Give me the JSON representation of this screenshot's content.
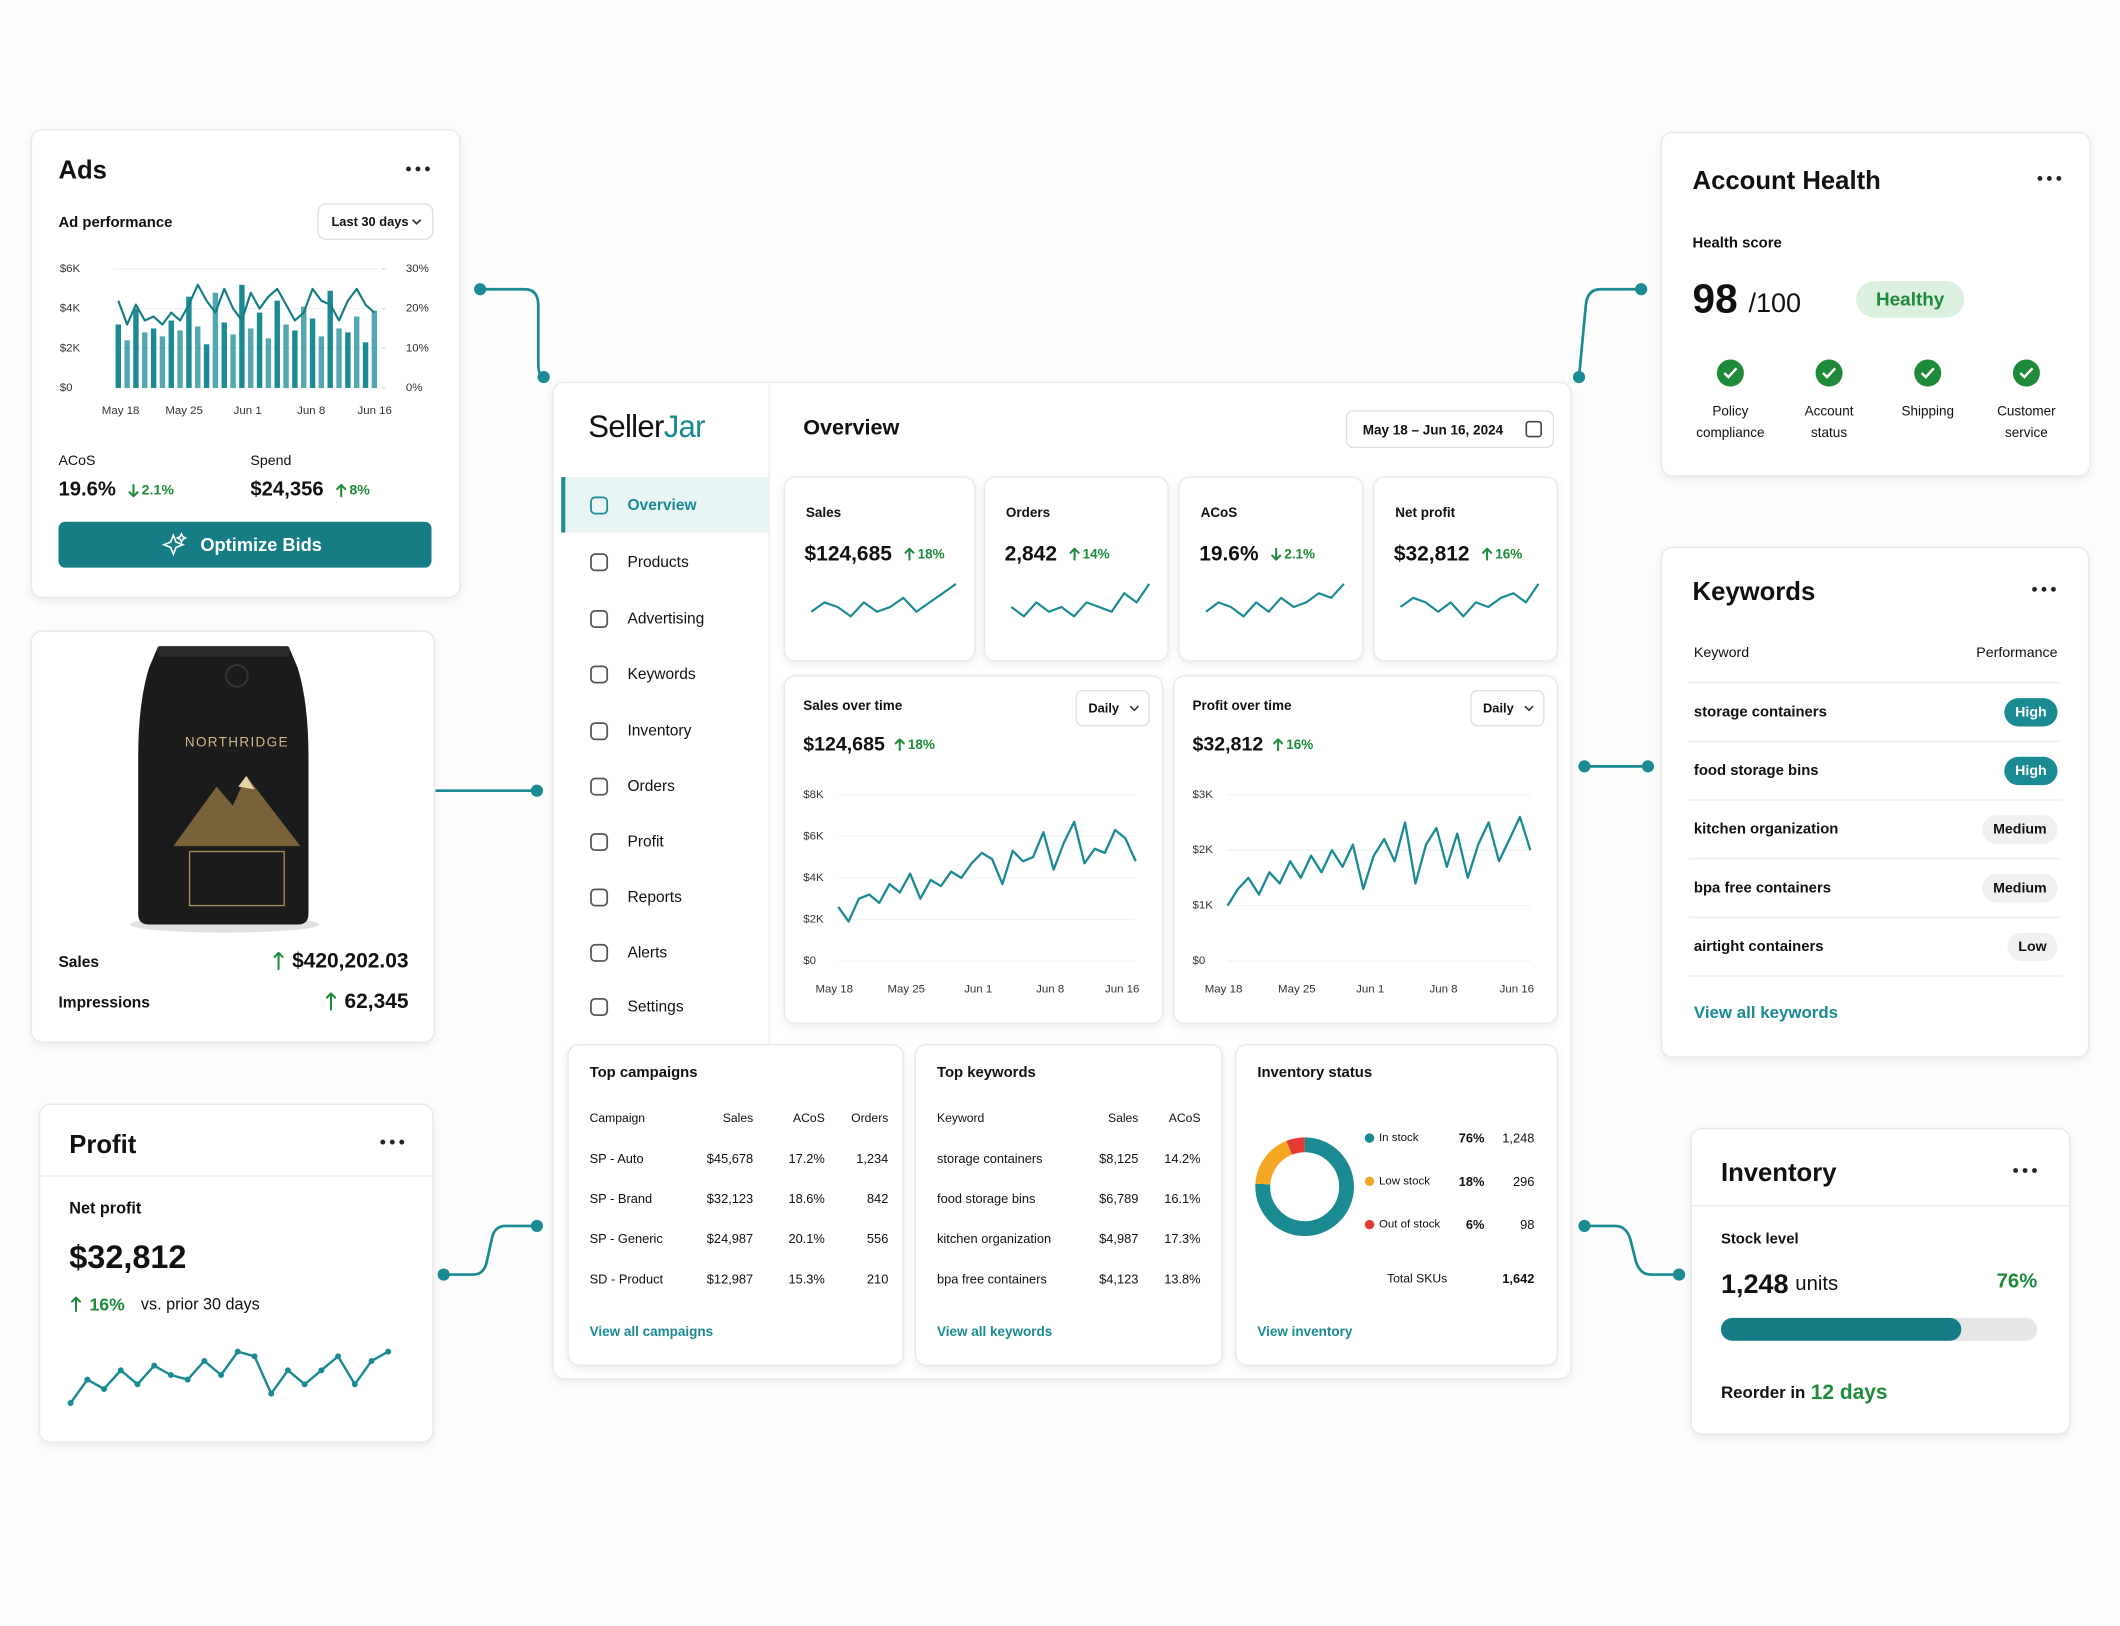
{
  "ads": {
    "title": "Ads",
    "subtitle": "Ad performance",
    "range": "Last 30 days",
    "chart": {
      "type": "bar",
      "x_labels": [
        "May 18",
        "May 25",
        "Jun 1",
        "Jun 8",
        "Jun 16"
      ],
      "series": [
        {
          "color": "#1a8a93",
          "values": [
            3200,
            2400,
            4000,
            2800,
            3000,
            2600,
            3400,
            2900,
            4600,
            3100,
            2200,
            4800,
            3300,
            2700,
            5200,
            3000,
            3800,
            2500,
            4400,
            3200,
            2900,
            4100,
            3500,
            2600,
            4900,
            3000,
            2800,
            3600,
            2300,
            3900
          ]
        },
        {
          "color": "#167d86",
          "axis": "y2",
          "type": "line",
          "values": [
            22,
            16,
            21,
            17,
            18,
            16,
            19,
            17,
            21,
            26,
            22,
            19,
            25,
            20,
            17,
            24,
            20,
            23,
            25,
            21,
            17,
            19,
            25,
            22,
            21,
            17,
            22,
            25,
            21,
            19
          ]
        }
      ],
      "ylim": [
        0,
        6000
      ],
      "yticks": [
        {
          "value": 0,
          "label": "$0"
        },
        {
          "value": 2000,
          "label": "$2K"
        },
        {
          "value": 4000,
          "label": "$4K"
        },
        {
          "value": 6000,
          "label": "$6K"
        }
      ],
      "y2lim": [
        0,
        30
      ],
      "y2ticks": [
        {
          "value": 0,
          "label": "0%"
        },
        {
          "value": 10,
          "label": "10%"
        },
        {
          "value": 20,
          "label": "20%"
        },
        {
          "value": 30,
          "label": "30%"
        }
      ]
    },
    "metrics": [
      {
        "label": "ACoS",
        "value": "19.6%",
        "delta": "2.1%",
        "trend": "down"
      },
      {
        "label": "Spend",
        "value": "$24,356",
        "delta": "8%",
        "trend": "up"
      }
    ],
    "button": "Optimize Bids"
  },
  "product": {
    "brand": "NORTHRIDGE",
    "stats": [
      {
        "label": "Sales",
        "value": "$420,202.03",
        "trend": "up"
      },
      {
        "label": "Impressions",
        "value": "62,345",
        "trend": "up"
      }
    ]
  },
  "profit": {
    "title": "Profit",
    "label": "Net profit",
    "value": "$32,812",
    "delta": "16%",
    "trend": "up",
    "note": "vs. prior 30 days",
    "sparkline": [
      3,
      8,
      6,
      10,
      7,
      11,
      9,
      8,
      12,
      9,
      14,
      13,
      5,
      10,
      7,
      10,
      13,
      7,
      12,
      14
    ]
  },
  "dashboard": {
    "logo": [
      "Seller",
      "Jar"
    ],
    "nav": [
      "Overview",
      "Products",
      "Advertising",
      "Keywords",
      "Inventory",
      "Orders",
      "Profit",
      "Reports",
      "Alerts",
      "Settings"
    ],
    "title": "Overview",
    "date_range": "May 18 – Jun 16, 2024",
    "kpis": [
      {
        "label": "Sales",
        "value": "$124,685",
        "delta": "18%",
        "trend": "up",
        "sparkline": [
          4,
          6,
          5,
          3,
          6,
          4,
          5,
          7,
          4,
          6,
          8,
          10
        ]
      },
      {
        "label": "Orders",
        "value": "2,842",
        "delta": "14%",
        "trend": "up",
        "sparkline": [
          5,
          3,
          6,
          4,
          5,
          3,
          6,
          5,
          4,
          8,
          6,
          10
        ]
      },
      {
        "label": "ACoS",
        "value": "19.6%",
        "delta": "2.1%",
        "trend": "down",
        "sparkline": [
          4,
          6,
          5,
          3,
          6,
          4,
          7,
          5,
          6,
          8,
          7,
          10
        ]
      },
      {
        "label": "Net profit",
        "value": "$32,812",
        "delta": "16%",
        "trend": "up",
        "sparkline": [
          5,
          7,
          6,
          4,
          6,
          3,
          6,
          5,
          7,
          8,
          6,
          10
        ]
      }
    ],
    "charts": [
      {
        "title": "Sales over time",
        "period": "Daily",
        "value": "$124,685",
        "delta": "18%",
        "trend": "up",
        "x_labels": [
          "May 18",
          "May 25",
          "Jun 1",
          "Jun 8",
          "Jun 16"
        ],
        "ylim": [
          0,
          8000
        ],
        "yticks": [
          {
            "value": 0,
            "label": "$0"
          },
          {
            "value": 2000,
            "label": "$2K"
          },
          {
            "value": 4000,
            "label": "$4K"
          },
          {
            "value": 6000,
            "label": "$6K"
          },
          {
            "value": 8000,
            "label": "$8K"
          }
        ],
        "color": "#1a8a93",
        "values": [
          2600,
          1900,
          3000,
          3200,
          2800,
          3700,
          3300,
          4200,
          3000,
          3900,
          3600,
          4300,
          4000,
          4700,
          5200,
          4900,
          3700,
          5300,
          4800,
          5000,
          6200,
          4400,
          5700,
          6700,
          4700,
          5400,
          5200,
          6300,
          5900,
          4800
        ]
      },
      {
        "title": "Profit over time",
        "period": "Daily",
        "value": "$32,812",
        "delta": "16%",
        "trend": "up",
        "x_labels": [
          "May 18",
          "May 25",
          "Jun 1",
          "Jun 8",
          "Jun 16"
        ],
        "ylim": [
          0,
          3000
        ],
        "yticks": [
          {
            "value": 0,
            "label": "$0"
          },
          {
            "value": 1000,
            "label": "$1K"
          },
          {
            "value": 2000,
            "label": "$2K"
          },
          {
            "value": 3000,
            "label": "$3K"
          }
        ],
        "color": "#1a8a93",
        "values": [
          1000,
          1300,
          1500,
          1200,
          1600,
          1400,
          1800,
          1500,
          1900,
          1600,
          2000,
          1700,
          2100,
          1300,
          1900,
          2200,
          1800,
          2500,
          1400,
          2100,
          2400,
          1700,
          2300,
          1500,
          2100,
          2500,
          1800,
          2200,
          2600,
          2000
        ]
      }
    ],
    "campaigns": {
      "title": "Top campaigns",
      "columns": [
        "Campaign",
        "Sales",
        "ACoS",
        "Orders"
      ],
      "rows": [
        [
          "SP - Auto",
          "$45,678",
          "17.2%",
          "1,234"
        ],
        [
          "SP - Brand",
          "$32,123",
          "18.6%",
          "842"
        ],
        [
          "SP - Generic",
          "$24,987",
          "20.1%",
          "556"
        ],
        [
          "SD - Product",
          "$12,987",
          "15.3%",
          "210"
        ]
      ],
      "link": "View all campaigns"
    },
    "keywords": {
      "title": "Top keywords",
      "columns": [
        "Keyword",
        "Sales",
        "ACoS"
      ],
      "rows": [
        [
          "storage containers",
          "$8,125",
          "14.2%"
        ],
        [
          "food storage bins",
          "$6,789",
          "16.1%"
        ],
        [
          "kitchen organization",
          "$4,987",
          "17.3%"
        ],
        [
          "bpa free containers",
          "$4,123",
          "13.8%"
        ]
      ],
      "link": "View all keywords"
    },
    "inventory": {
      "title": "Inventory status",
      "chart": {
        "type": "pie",
        "categories": [
          "In stock",
          "Low stock",
          "Out of stock"
        ],
        "values": [
          76,
          18,
          6
        ],
        "value_labels": [
          "76%",
          "18%",
          "6%"
        ],
        "colors": [
          "#1a8a93",
          "#f5a623",
          "#e53935"
        ]
      },
      "counts": [
        "1,248",
        "296",
        "98"
      ],
      "total_label": "Total SKUs",
      "total": "1,642",
      "link": "View inventory"
    }
  },
  "account_health": {
    "title": "Account Health",
    "score_label": "Health score",
    "score": "98",
    "max": "/100",
    "status": "Healthy",
    "checks": [
      [
        "Policy",
        "compliance"
      ],
      [
        "Account",
        "status"
      ],
      [
        "Shipping"
      ],
      [
        "Customer",
        "service"
      ]
    ]
  },
  "keywords": {
    "title": "Keywords",
    "columns": [
      "Keyword",
      "Performance"
    ],
    "rows": [
      [
        "storage containers",
        "High"
      ],
      [
        "food storage bins",
        "High"
      ],
      [
        "kitchen organization",
        "Medium"
      ],
      [
        "bpa free containers",
        "Medium"
      ],
      [
        "airtight containers",
        "Low"
      ]
    ],
    "link": "View all keywords"
  },
  "inventory": {
    "title": "Inventory",
    "label": "Stock level",
    "units": "1,248",
    "unit": "units",
    "level": 76,
    "level_label": "76%",
    "reorder": "Reorder in",
    "reorder_days": "12 days"
  }
}
